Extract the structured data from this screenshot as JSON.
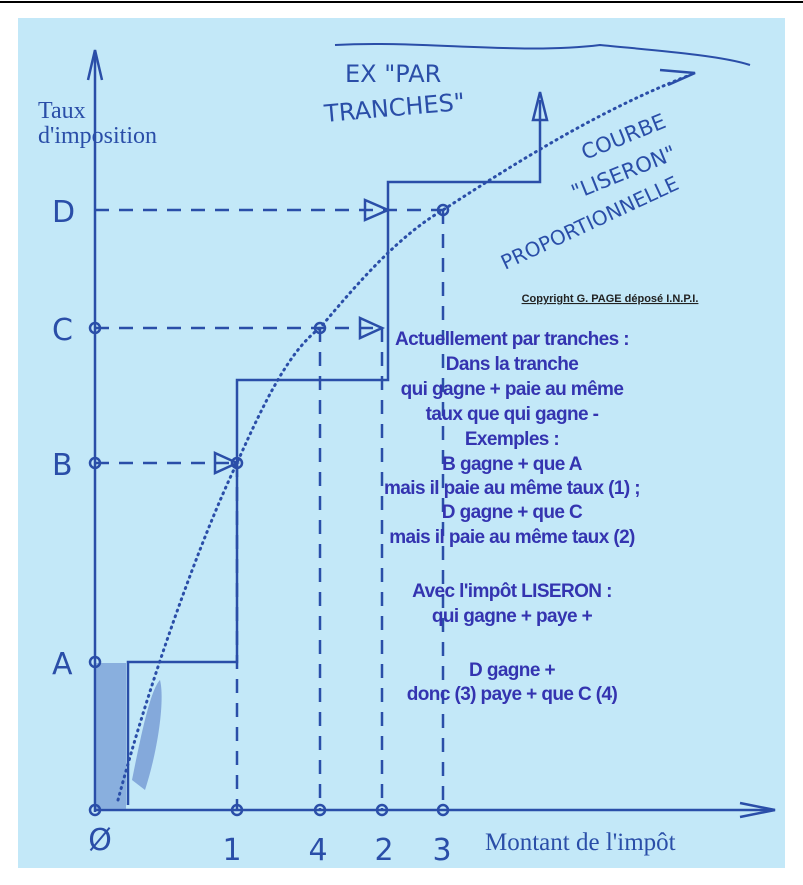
{
  "axes": {
    "y_label_lines": [
      "Taux",
      "d'imposition"
    ],
    "x_label": "Montant de l'impôt"
  },
  "y_levels": [
    "D",
    "C",
    "B",
    "A"
  ],
  "x_points": [
    "Ø",
    "1",
    "4",
    "2",
    "3"
  ],
  "annotations": {
    "step_label_lines": [
      "EX \"PAR",
      "TRANCHES\""
    ],
    "curve_label_lines": [
      "COURBE",
      "\"LISERON\"",
      "PROPORTIONNELLE"
    ]
  },
  "copyright": "Copyright G. PAGE déposé I.N.P.I.",
  "explanation": [
    "Actuellement par tranches :",
    "Dans la tranche",
    "qui gagne + paie au même",
    "taux que qui gagne -",
    "Exemples :",
    "B gagne + que A",
    "mais il paie au même taux (1) ;",
    "D gagne + que C",
    "mais il paie au même taux (2)",
    "Avec l'impôt LISERON :",
    "qui gagne + paye +",
    "D gagne +",
    "donc (3) paye + que C (4)"
  ]
}
